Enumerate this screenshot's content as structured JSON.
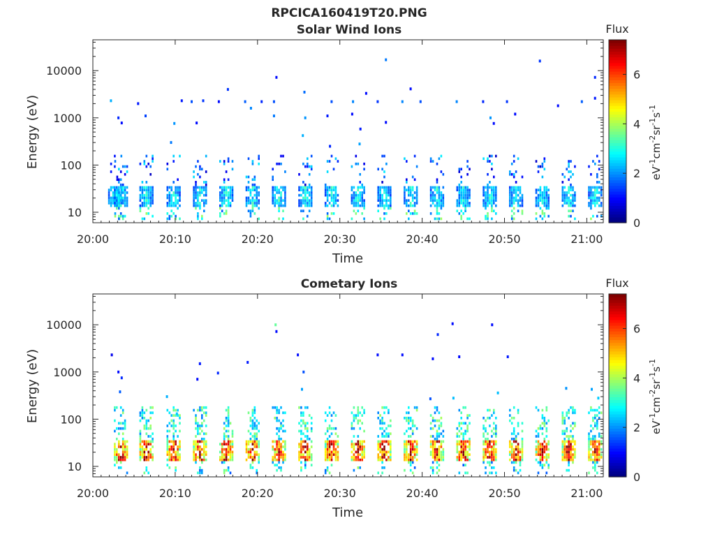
{
  "figure": {
    "filename_title": "RPCICA160419T20.PNG"
  },
  "chart_data": [
    {
      "type": "heatmap",
      "title": "Solar Wind Ions",
      "xlabel": "Time",
      "ylabel": "Energy (eV)",
      "x_ticks": [
        "20:00",
        "20:10",
        "20:20",
        "20:30",
        "20:40",
        "20:50",
        "21:00"
      ],
      "y_ticks": [
        "10",
        "100",
        "1000",
        "10000"
      ],
      "y_scale": "log",
      "xlim": [
        "20:00",
        "21:02"
      ],
      "ylim": [
        6,
        45000
      ],
      "colorbar": {
        "title": "Flux",
        "unit_base": [
          "eV",
          "cm",
          "sr",
          "s"
        ],
        "unit_exp": [
          "-1",
          "-2",
          "-1",
          "-1"
        ],
        "ticks": [
          "0",
          "2",
          "4",
          "6"
        ],
        "range": [
          0,
          7.4
        ],
        "colormap": "jet"
      },
      "scan_minutes": [
        2.6,
        3.3,
        6.4,
        9.7,
        12.9,
        16.1,
        19.3,
        22.5,
        25.7,
        28.9,
        32.1,
        35.3,
        38.5,
        41.7,
        44.9,
        48.1,
        51.3,
        54.5,
        57.7,
        60.9
      ],
      "core_energy_range_eV": [
        13,
        38
      ],
      "core_flux_typical": 2.5,
      "scattered_points": [
        {
          "t": 2.2,
          "e": 2300,
          "f": 2.2
        },
        {
          "t": 3.1,
          "e": 1000,
          "f": 1.2
        },
        {
          "t": 3.5,
          "e": 780,
          "f": 1.0
        },
        {
          "t": 5.5,
          "e": 2000,
          "f": 1.1
        },
        {
          "t": 6.4,
          "e": 1100,
          "f": 1.4
        },
        {
          "t": 9.5,
          "e": 300,
          "f": 1.8
        },
        {
          "t": 9.9,
          "e": 760,
          "f": 2.0
        },
        {
          "t": 10.8,
          "e": 2300,
          "f": 1.1
        },
        {
          "t": 12.0,
          "e": 2200,
          "f": 1.5
        },
        {
          "t": 12.6,
          "e": 780,
          "f": 1.0
        },
        {
          "t": 13.4,
          "e": 2300,
          "f": 1.3
        },
        {
          "t": 15.3,
          "e": 2200,
          "f": 1.0
        },
        {
          "t": 16.4,
          "e": 4000,
          "f": 1.3
        },
        {
          "t": 18.5,
          "e": 2200,
          "f": 1.6
        },
        {
          "t": 19.2,
          "e": 1600,
          "f": 1.9
        },
        {
          "t": 20.5,
          "e": 2200,
          "f": 1.2
        },
        {
          "t": 22.0,
          "e": 2200,
          "f": 1.5
        },
        {
          "t": 22.3,
          "e": 7200,
          "f": 1.0
        },
        {
          "t": 22.0,
          "e": 1100,
          "f": 1.8
        },
        {
          "t": 25.7,
          "e": 3500,
          "f": 1.7
        },
        {
          "t": 25.5,
          "e": 420,
          "f": 2.2
        },
        {
          "t": 25.8,
          "e": 1000,
          "f": 2.0
        },
        {
          "t": 28.5,
          "e": 1100,
          "f": 1.1
        },
        {
          "t": 28.8,
          "e": 250,
          "f": 1.2
        },
        {
          "t": 29.0,
          "e": 2200,
          "f": 1.5
        },
        {
          "t": 31.5,
          "e": 1200,
          "f": 1.0
        },
        {
          "t": 31.6,
          "e": 2200,
          "f": 1.9
        },
        {
          "t": 32.5,
          "e": 580,
          "f": 1.1
        },
        {
          "t": 33.2,
          "e": 3300,
          "f": 1.0
        },
        {
          "t": 32.4,
          "e": 280,
          "f": 2.1
        },
        {
          "t": 34.6,
          "e": 2200,
          "f": 1.3
        },
        {
          "t": 35.6,
          "e": 17000,
          "f": 1.8
        },
        {
          "t": 35.6,
          "e": 800,
          "f": 1.0
        },
        {
          "t": 37.6,
          "e": 2200,
          "f": 1.9
        },
        {
          "t": 38.6,
          "e": 4100,
          "f": 1.0
        },
        {
          "t": 39.8,
          "e": 2200,
          "f": 1.5
        },
        {
          "t": 44.2,
          "e": 2200,
          "f": 1.9
        },
        {
          "t": 47.4,
          "e": 2200,
          "f": 1.2
        },
        {
          "t": 48.3,
          "e": 1000,
          "f": 2.0
        },
        {
          "t": 48.7,
          "e": 760,
          "f": 1.0
        },
        {
          "t": 50.3,
          "e": 2200,
          "f": 1.3
        },
        {
          "t": 51.3,
          "e": 1200,
          "f": 1.0
        },
        {
          "t": 54.3,
          "e": 16000,
          "f": 1.3
        },
        {
          "t": 56.5,
          "e": 1800,
          "f": 1.0
        },
        {
          "t": 59.4,
          "e": 2200,
          "f": 1.6
        },
        {
          "t": 61.0,
          "e": 7200,
          "f": 1.2
        },
        {
          "t": 61.0,
          "e": 2600,
          "f": 1.1
        }
      ]
    },
    {
      "type": "heatmap",
      "title": "Cometary Ions",
      "xlabel": "Time",
      "ylabel": "Energy (eV)",
      "x_ticks": [
        "20:00",
        "20:10",
        "20:20",
        "20:30",
        "20:40",
        "20:50",
        "21:00"
      ],
      "y_ticks": [
        "10",
        "100",
        "1000",
        "10000"
      ],
      "y_scale": "log",
      "xlim": [
        "20:00",
        "21:02"
      ],
      "ylim": [
        6,
        45000
      ],
      "colorbar": {
        "title": "Flux",
        "unit_base": [
          "eV",
          "cm",
          "sr",
          "s"
        ],
        "unit_exp": [
          "-1",
          "-2",
          "-1",
          "-1"
        ],
        "ticks": [
          "0",
          "2",
          "4",
          "6"
        ],
        "range": [
          0,
          7.4
        ],
        "colormap": "jet"
      },
      "scan_minutes": [
        3.3,
        6.4,
        9.7,
        12.9,
        16.1,
        19.3,
        22.5,
        25.7,
        28.9,
        32.1,
        35.3,
        38.5,
        41.7,
        44.9,
        48.1,
        51.3,
        54.5,
        57.7,
        60.9
      ],
      "core_energy_range_eV": [
        13,
        35
      ],
      "core_flux_typical": 6.0,
      "scattered_points": [
        {
          "t": 2.3,
          "e": 2300,
          "f": 0.8
        },
        {
          "t": 3.1,
          "e": 1000,
          "f": 1.0
        },
        {
          "t": 3.5,
          "e": 750,
          "f": 1.2
        },
        {
          "t": 3.3,
          "e": 380,
          "f": 1.6
        },
        {
          "t": 9.0,
          "e": 300,
          "f": 2.2
        },
        {
          "t": 10.2,
          "e": 130,
          "f": 2.4
        },
        {
          "t": 12.7,
          "e": 700,
          "f": 1.0
        },
        {
          "t": 13.0,
          "e": 1500,
          "f": 1.1
        },
        {
          "t": 15.2,
          "e": 950,
          "f": 1.2
        },
        {
          "t": 18.8,
          "e": 1600,
          "f": 1.1
        },
        {
          "t": 22.2,
          "e": 10000,
          "f": 3.5
        },
        {
          "t": 22.3,
          "e": 7200,
          "f": 1.0
        },
        {
          "t": 24.9,
          "e": 2300,
          "f": 1.0
        },
        {
          "t": 25.6,
          "e": 1000,
          "f": 1.5
        },
        {
          "t": 25.4,
          "e": 430,
          "f": 2.1
        },
        {
          "t": 34.6,
          "e": 2300,
          "f": 1.0
        },
        {
          "t": 37.6,
          "e": 2300,
          "f": 1.0
        },
        {
          "t": 41.3,
          "e": 1900,
          "f": 1.0
        },
        {
          "t": 41.9,
          "e": 6200,
          "f": 1.2
        },
        {
          "t": 43.7,
          "e": 10500,
          "f": 1.0
        },
        {
          "t": 44.5,
          "e": 2100,
          "f": 1.0
        },
        {
          "t": 48.5,
          "e": 10000,
          "f": 1.0
        },
        {
          "t": 50.4,
          "e": 2100,
          "f": 1.1
        },
        {
          "t": 49.2,
          "e": 360,
          "f": 2.3
        },
        {
          "t": 57.5,
          "e": 450,
          "f": 2.0
        },
        {
          "t": 60.6,
          "e": 430,
          "f": 2.1
        },
        {
          "t": 61.4,
          "e": 280,
          "f": 2.4
        },
        {
          "t": 43.8,
          "e": 280,
          "f": 2.3
        },
        {
          "t": 41.0,
          "e": 270,
          "f": 1.5
        }
      ]
    }
  ]
}
